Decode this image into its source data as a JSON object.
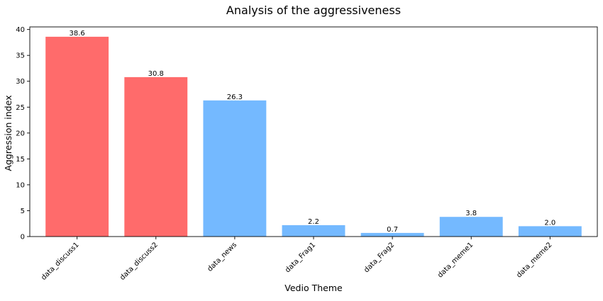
{
  "chart_data": {
    "type": "bar",
    "title": "Analysis of the aggressiveness",
    "xlabel": "Vedio Theme",
    "ylabel": "Aggression index",
    "categories": [
      "data_discuss1",
      "data_discuss2",
      "data_news",
      "data_Frag1",
      "data_Frag2",
      "data_meme1",
      "data_meme2"
    ],
    "values": [
      38.6,
      30.8,
      26.3,
      2.2,
      0.7,
      3.8,
      2.0
    ],
    "value_labels": [
      "38.6",
      "30.8",
      "26.3",
      "2.2",
      "0.7",
      "3.8",
      "2.0"
    ],
    "bar_colors": [
      "#ff6b6b",
      "#ff6b6b",
      "#74b9ff",
      "#74b9ff",
      "#74b9ff",
      "#74b9ff",
      "#74b9ff"
    ],
    "ylim": [
      0,
      40.5
    ],
    "yticks": [
      0,
      5,
      10,
      15,
      20,
      25,
      30,
      35,
      40
    ],
    "ytick_labels": [
      "0",
      "5",
      "10",
      "15",
      "20",
      "25",
      "30",
      "35",
      "40"
    ],
    "grid": false,
    "legend": "none"
  }
}
